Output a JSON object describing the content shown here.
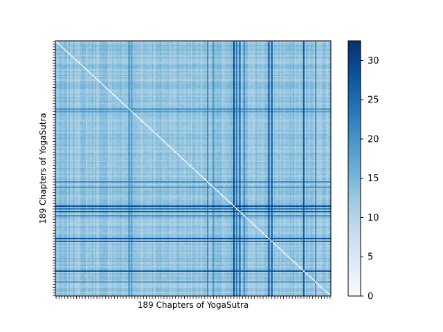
{
  "chart_data": {
    "type": "heatmap",
    "title": "",
    "xlabel": "189 Chapters of YogaSutra",
    "ylabel": "189 Chapters of YogaSutra",
    "n": 189,
    "value_range": [
      0,
      32.5
    ],
    "colormap": "Blues",
    "colorbar": {
      "ticks": [
        0,
        5,
        10,
        15,
        20,
        25,
        30
      ],
      "tick_labels": [
        "0",
        "5",
        "10",
        "15",
        "20",
        "25",
        "30"
      ]
    },
    "diagonal_value": 0,
    "base_value": 13,
    "tick_labels_shown": false,
    "bands": [
      {
        "index": 50,
        "value": 21
      },
      {
        "index": 52,
        "value": 19
      },
      {
        "index": 104,
        "value": 21
      },
      {
        "index": 108,
        "value": 19
      },
      {
        "index": 122,
        "value": 29
      },
      {
        "index": 124,
        "value": 23
      },
      {
        "index": 126,
        "value": 27
      },
      {
        "index": 129,
        "value": 20
      },
      {
        "index": 146,
        "value": 28
      },
      {
        "index": 148,
        "value": 25
      },
      {
        "index": 170,
        "value": 27
      },
      {
        "index": 178,
        "value": 20
      }
    ]
  }
}
